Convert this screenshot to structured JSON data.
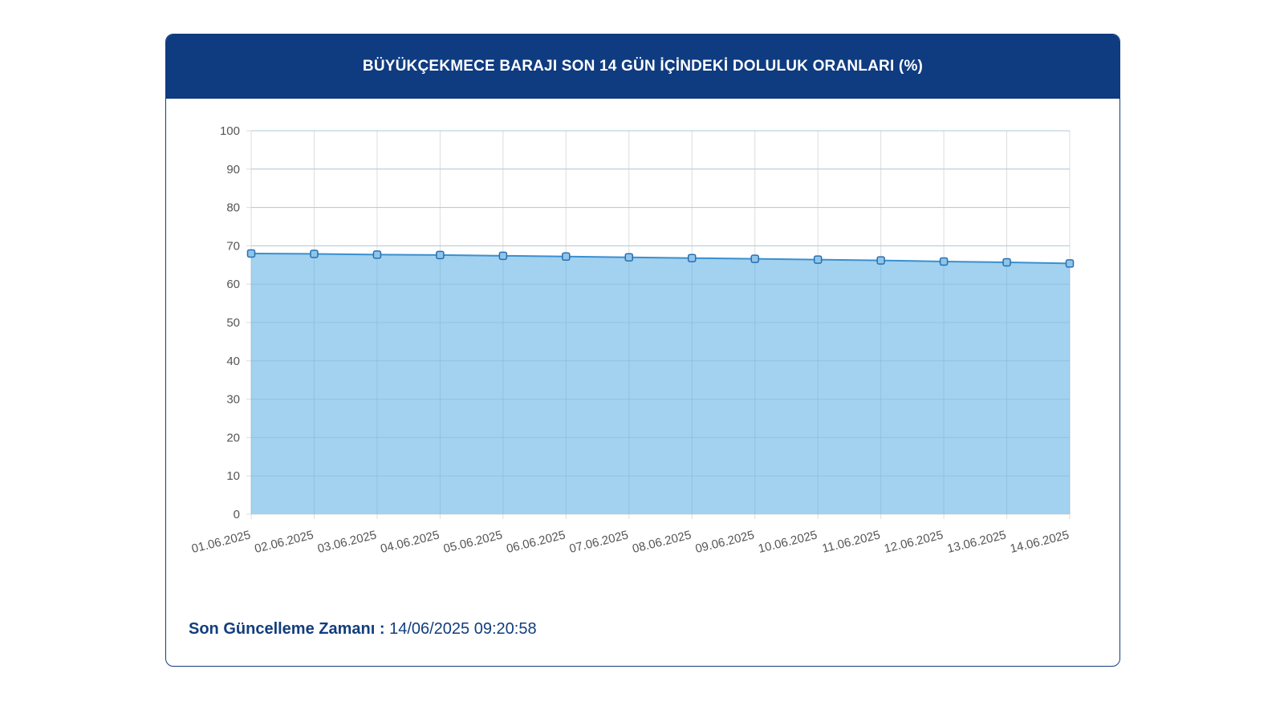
{
  "header": {
    "title": "BÜYÜKÇEKMECE BARAJI SON 14 GÜN İÇİNDEKİ DOLULUK ORANLARI (%)"
  },
  "footer": {
    "label": "Son Güncelleme Zamanı :",
    "value": "14/06/2025 09:20:58"
  },
  "colors": {
    "header_bg": "#0f3b80",
    "line": "#3a8fd0",
    "fill": "#9dd0ee",
    "point": "#3a7fc0"
  },
  "chart_data": {
    "type": "area",
    "categories": [
      "01.06.2025",
      "02.06.2025",
      "03.06.2025",
      "04.06.2025",
      "05.06.2025",
      "06.06.2025",
      "07.06.2025",
      "08.06.2025",
      "09.06.2025",
      "10.06.2025",
      "11.06.2025",
      "12.06.2025",
      "13.06.2025",
      "14.06.2025"
    ],
    "values": [
      68.0,
      67.9,
      67.7,
      67.6,
      67.4,
      67.2,
      67.0,
      66.8,
      66.6,
      66.4,
      66.2,
      65.9,
      65.7,
      65.4
    ],
    "ylim": [
      0,
      100
    ],
    "yticks": [
      0,
      10,
      20,
      30,
      40,
      50,
      60,
      70,
      80,
      90,
      100
    ],
    "grid": true,
    "legend": "none"
  }
}
